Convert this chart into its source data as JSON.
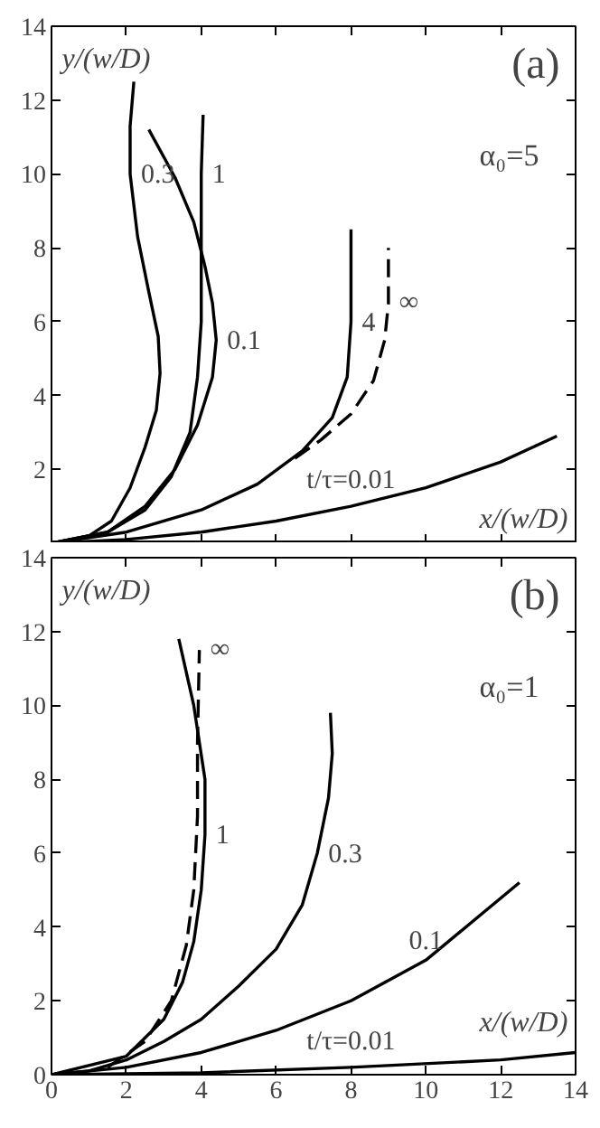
{
  "chart_data": [
    {
      "type": "line",
      "title": "(a)",
      "subtitle": "α₀=5",
      "xlabel": "x/(w/D)",
      "ylabel": "y/(w/D)",
      "xlim": [
        0,
        14
      ],
      "ylim": [
        0,
        14
      ],
      "xticks": [
        0,
        2,
        4,
        6,
        8,
        10,
        12,
        14
      ],
      "yticks": [
        {
          "value": 0,
          "label": null
        },
        2,
        4,
        6,
        8,
        10,
        12,
        14
      ],
      "tick_labels": "y",
      "grid": false,
      "series": [
        {
          "color": "#000000",
          "line_style": "solid",
          "x": [
            0,
            2,
            4,
            6,
            8,
            10,
            12,
            13.5
          ],
          "values": [
            0,
            0.1,
            0.3,
            0.6,
            1.0,
            1.5,
            2.2,
            2.9
          ]
        },
        {
          "color": "#000000",
          "line_style": "solid",
          "x": [
            0,
            1,
            1.6,
            2.1,
            2.5,
            2.8,
            2.9,
            2.85,
            2.6,
            2.3,
            2.1,
            2.1,
            2.2
          ],
          "values": [
            0,
            0.2,
            0.6,
            1.5,
            2.6,
            3.6,
            4.6,
            5.6,
            6.8,
            8.3,
            10,
            11.3,
            12.5
          ]
        },
        {
          "color": "#000000",
          "line_style": "solid",
          "x": [
            0,
            1.5,
            2.5,
            3.3,
            3.9,
            4.3,
            4.4,
            4.3,
            4.1,
            3.8,
            3.3,
            2.6
          ],
          "values": [
            0,
            0.3,
            1.0,
            2,
            3.2,
            4.5,
            5.5,
            6.5,
            7.5,
            8.7,
            9.9,
            11.2
          ]
        },
        {
          "color": "#000000",
          "line_style": "solid",
          "x": [
            0,
            1.5,
            2.5,
            3.2,
            3.7,
            3.9,
            4.0,
            4.0,
            4.0,
            4.05
          ],
          "values": [
            0,
            0.3,
            0.9,
            1.8,
            3,
            4.5,
            6,
            8,
            10,
            11.6
          ]
        },
        {
          "color": "#000000",
          "line_style": "solid",
          "x": [
            0,
            2,
            4,
            5.5,
            6.7,
            7.5,
            7.9,
            8.0,
            8.0
          ],
          "values": [
            0,
            0.3,
            0.9,
            1.6,
            2.5,
            3.4,
            4.5,
            6,
            8.5
          ]
        },
        {
          "color": "#000000",
          "line_style": "dashed",
          "x": [
            6.5,
            7.2,
            8.0,
            8.6,
            8.9,
            9.0,
            9.0
          ],
          "values": [
            2.3,
            2.8,
            3.5,
            4.4,
            5.5,
            6.5,
            8.0
          ]
        }
      ],
      "annotations": [
        {
          "text": "t/τ=0.01",
          "x": 8,
          "y": 1.0
        },
        {
          "text": "0.3",
          "x": 2.1,
          "y": 10
        },
        {
          "text": "0.1",
          "x": 4.4,
          "y": 5.5
        },
        {
          "text": "1",
          "x": 4.0,
          "y": 10
        },
        {
          "text": "4",
          "x": 8.0,
          "y": 6
        },
        {
          "text": "∞",
          "x": 9.0,
          "y": 6.5
        }
      ]
    },
    {
      "type": "line",
      "title": "(b)",
      "subtitle": "α₀=1",
      "xlabel": "x/(w/D)",
      "ylabel": "y/(w/D)",
      "xlim": [
        0,
        14
      ],
      "ylim": [
        0,
        14
      ],
      "xticks": [
        0,
        2,
        4,
        6,
        8,
        10,
        12,
        14
      ],
      "yticks": [
        0,
        2,
        4,
        6,
        8,
        10,
        12,
        14
      ],
      "grid": false,
      "series": [
        {
          "color": "#000000",
          "line_style": "solid",
          "x": [
            0,
            4,
            8,
            12,
            14
          ],
          "values": [
            0,
            0.05,
            0.2,
            0.4,
            0.6
          ]
        },
        {
          "color": "#000000",
          "line_style": "solid",
          "x": [
            0,
            2,
            4,
            6,
            8,
            10,
            12.5
          ],
          "values": [
            0,
            0.2,
            0.6,
            1.2,
            2.0,
            3.1,
            5.2
          ]
        },
        {
          "color": "#000000",
          "line_style": "solid",
          "x": [
            0,
            1,
            2,
            3,
            4,
            5,
            6,
            6.7,
            7.1,
            7.4,
            7.5,
            7.45
          ],
          "values": [
            0,
            0.1,
            0.4,
            0.9,
            1.5,
            2.4,
            3.4,
            4.6,
            6,
            7.5,
            8.7,
            9.8
          ]
        },
        {
          "color": "#000000",
          "line_style": "solid",
          "x": [
            0,
            2,
            3,
            3.5,
            3.8,
            4.0,
            4.1,
            4.1,
            3.8,
            3.4
          ],
          "values": [
            0,
            0.5,
            1.5,
            2.5,
            3.6,
            5,
            6.5,
            8,
            10,
            11.8
          ]
        },
        {
          "color": "#000000",
          "line_style": "dashed",
          "x": [
            1.5,
            2.5,
            3.2,
            3.6,
            3.8,
            3.9,
            3.9,
            3.95
          ],
          "values": [
            0.2,
            0.9,
            2,
            3.5,
            5,
            7,
            9,
            11.5
          ]
        }
      ],
      "annotations": [
        {
          "text": "t/τ=0.01",
          "x": 8,
          "y": 0.2
        },
        {
          "text": "0.1",
          "x": 10,
          "y": 3.1
        },
        {
          "text": "0.3",
          "x": 7.1,
          "y": 6
        },
        {
          "text": "1",
          "x": 4.1,
          "y": 6.5
        },
        {
          "text": "∞",
          "x": 3.95,
          "y": 11.5
        }
      ]
    }
  ]
}
